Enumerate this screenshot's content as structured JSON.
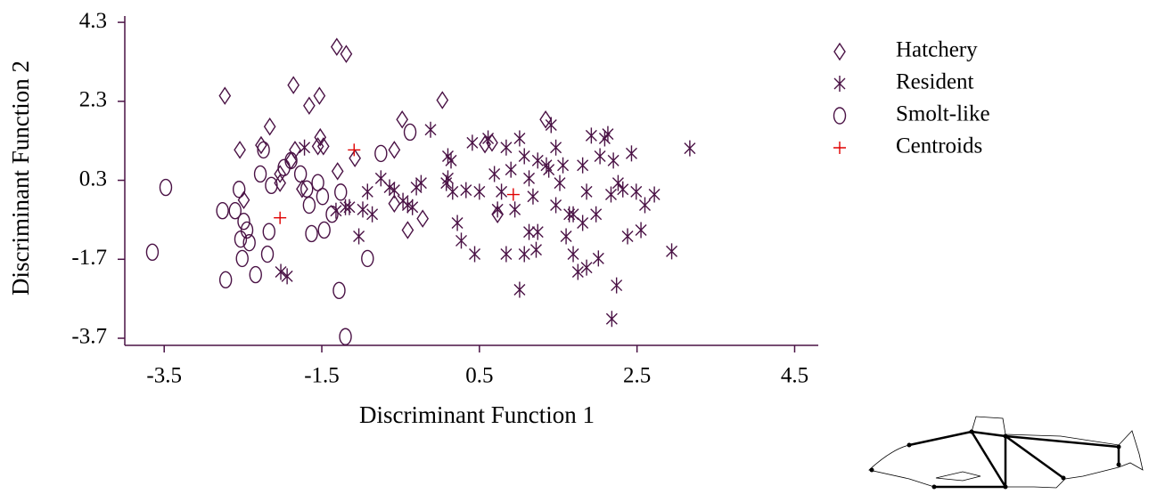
{
  "chart_data": {
    "type": "scatter",
    "xlabel": "Discriminant Function 1",
    "ylabel": "Discriminant Function 2",
    "xlim": [
      -4,
      4.8
    ],
    "ylim": [
      -3.88,
      4.46
    ],
    "xticks": [
      -3.5,
      -1.5,
      0.5,
      2.5,
      4.5
    ],
    "yticks": [
      4.3,
      2.3,
      0.3,
      -1.7,
      -3.7
    ],
    "series": [
      {
        "name": "Hatchery",
        "color": "#4a1245",
        "marker": "diamond",
        "x": [
          -2.73,
          -2.54,
          -2.27,
          -2.16,
          -1.86,
          -1.66,
          -1.53,
          -1.31,
          -1.19,
          -1.52,
          -1.55,
          -1.84,
          -1.48,
          -1.08,
          -0.58,
          -0.48,
          0.03,
          1.34,
          0.57,
          0.66,
          -0.22,
          -0.41,
          -0.58,
          0.73,
          -1.3,
          -1.75,
          -2.03,
          -2.49,
          -2.03,
          -1.89
        ],
        "y": [
          2.44,
          1.07,
          1.19,
          1.66,
          2.71,
          2.19,
          2.44,
          3.68,
          3.5,
          1.39,
          1.16,
          1.07,
          1.16,
          0.86,
          1.07,
          1.84,
          2.33,
          1.84,
          1.21,
          1.25,
          -0.67,
          -0.96,
          -0.29,
          -0.56,
          0.53,
          0.08,
          0.23,
          -0.2,
          0.46,
          0.8
        ]
      },
      {
        "name": "Resident",
        "color": "#4a1245",
        "marker": "star",
        "x": [
          -2.02,
          -1.94,
          -1.72,
          -1.32,
          -1.15,
          -1.03,
          -0.92,
          -0.86,
          -0.75,
          -0.64,
          -0.58,
          -0.47,
          -0.35,
          -0.3,
          -0.12,
          0.1,
          0.14,
          0.08,
          0.16,
          0.22,
          0.27,
          0.33,
          0.41,
          0.44,
          0.5,
          0.61,
          0.69,
          0.78,
          0.84,
          0.9,
          0.95,
          1.01,
          1.07,
          1.13,
          1.18,
          1.24,
          0.84,
          1.01,
          1.07,
          1.22,
          1.35,
          1.41,
          1.47,
          1.52,
          1.56,
          1.6,
          1.64,
          1.69,
          1.75,
          1.81,
          1.86,
          1.92,
          1.98,
          2.03,
          2.09,
          2.13,
          2.17,
          2.2,
          2.24,
          2.26,
          2.32,
          2.38,
          2.43,
          2.55,
          2.6,
          2.72,
          2.94,
          3.17,
          2.01,
          2.18,
          1.38,
          1.13,
          1.47,
          1.69,
          1.81,
          1.86,
          2.49,
          1.24,
          0.73,
          0.1,
          -0.24,
          -0.41,
          -0.98,
          -1.2
        ],
        "y": [
          -2.02,
          -2.13,
          1.13,
          -0.47,
          -0.38,
          -1.12,
          0.01,
          -0.56,
          0.35,
          0.12,
          0.05,
          -0.22,
          -0.38,
          0.12,
          1.58,
          0.91,
          0.8,
          0.23,
          0.01,
          -0.78,
          -1.23,
          0.05,
          1.25,
          -1.57,
          0.01,
          1.36,
          0.46,
          0.01,
          1.13,
          0.57,
          -0.44,
          1.36,
          0.91,
          0.35,
          -0.11,
          0.8,
          -1.57,
          -2.47,
          -1.57,
          -1.46,
          0.68,
          1.7,
          1.13,
          0.23,
          0.68,
          -1.12,
          -0.56,
          -1.57,
          -2.02,
          0.68,
          0.01,
          1.43,
          -0.56,
          0.91,
          1.36,
          1.47,
          -0.06,
          0.8,
          -2.36,
          0.23,
          0.07,
          -1.12,
          0.98,
          -0.96,
          -0.33,
          -0.06,
          -1.5,
          1.11,
          -1.68,
          -3.21,
          0.57,
          -1.01,
          -0.33,
          -0.56,
          -0.78,
          -1.91,
          0.01,
          -1.01,
          -0.44,
          0.35,
          0.23,
          -0.33,
          -0.44,
          -0.38
        ]
      },
      {
        "name": "Smolt-like",
        "color": "#4a1245",
        "marker": "circle",
        "x": [
          -3.65,
          -3.48,
          -2.76,
          -2.6,
          -2.55,
          -2.49,
          -2.53,
          -2.45,
          -2.42,
          -2.51,
          -2.72,
          -2.34,
          -2.19,
          -2.17,
          -2.28,
          -2.14,
          -1.98,
          -1.89,
          -1.77,
          -1.69,
          -1.66,
          -1.63,
          -1.55,
          -1.49,
          -1.26,
          -1.37,
          -1.47,
          -1.28,
          -1.2,
          -0.92,
          -0.75,
          -0.38,
          -2.24
        ],
        "y": [
          -1.52,
          0.12,
          -0.47,
          -0.47,
          0.07,
          -0.74,
          -1.19,
          -0.96,
          -1.28,
          -1.68,
          -2.22,
          -2.09,
          -1.57,
          -1.0,
          0.46,
          0.17,
          0.62,
          0.8,
          0.46,
          0.08,
          -0.33,
          -1.05,
          0.24,
          -0.11,
          0.0,
          -0.56,
          -0.96,
          -2.49,
          -3.66,
          -1.68,
          0.98,
          1.52,
          1.07
        ]
      },
      {
        "name": "Centroids",
        "color": "#e00000",
        "marker": "plus",
        "x": [
          -2.03,
          -1.09,
          0.93
        ],
        "y": [
          -0.65,
          1.07,
          -0.06
        ]
      }
    ]
  }
}
